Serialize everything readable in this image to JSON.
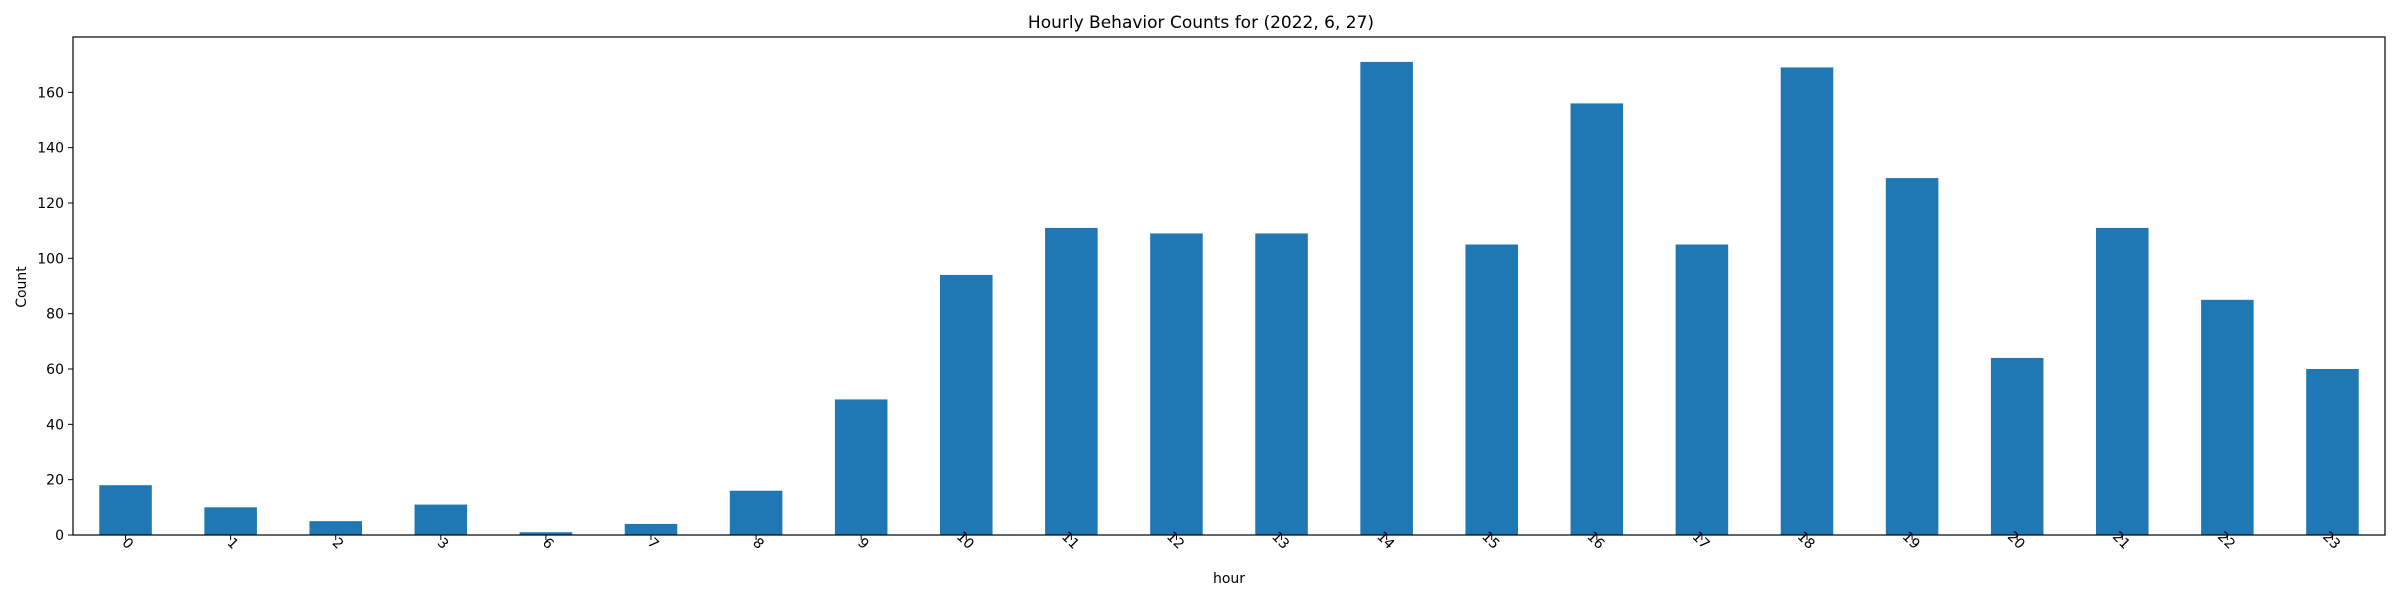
{
  "chart_data": {
    "type": "bar",
    "title": "Hourly Behavior Counts for (2022, 6, 27)",
    "xlabel": "hour",
    "ylabel": "Count",
    "categories": [
      "0",
      "1",
      "2",
      "3",
      "6",
      "7",
      "8",
      "9",
      "10",
      "11",
      "12",
      "13",
      "14",
      "15",
      "16",
      "17",
      "18",
      "19",
      "20",
      "21",
      "22",
      "23"
    ],
    "values": [
      18,
      10,
      5,
      11,
      1,
      4,
      16,
      49,
      94,
      111,
      109,
      109,
      171,
      105,
      156,
      105,
      169,
      129,
      64,
      111,
      85,
      60
    ],
    "ylim": [
      0,
      180
    ],
    "yticks": [
      0,
      20,
      40,
      60,
      80,
      100,
      120,
      140,
      160
    ],
    "xtick_rotation_deg": 45,
    "grid": false,
    "legend": "none",
    "bar_color": "#1f77b4"
  }
}
